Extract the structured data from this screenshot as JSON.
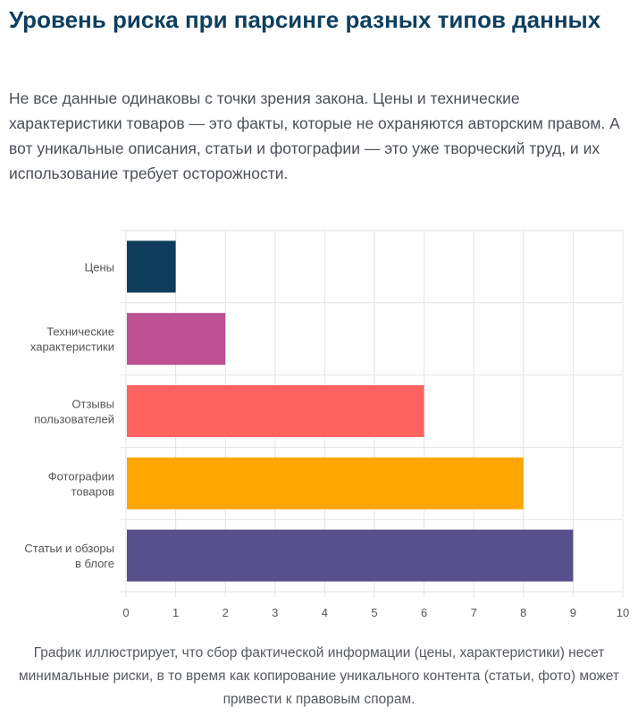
{
  "title": "Уровень риска при парсинге разных типов данных",
  "intro": "Не все данные одинаковы с точки зрения закона. Цены и технические характеристики товаров — это факты, которые не охраняются авторским правом. А вот уникальные описания, статьи и фотографии — это уже творческий труд, и их использование требует осторожности.",
  "caption": "График иллюстрирует, что сбор фактической информации (цены, характеристики) несет минимальные риски, в то время как копирование уникального контента (статьи, фото) может привести к правовым спорам.",
  "chart_data": {
    "type": "bar",
    "orientation": "horizontal",
    "categories": [
      [
        "Цены"
      ],
      [
        "Технические",
        "характеристики"
      ],
      [
        "Отзывы",
        "пользователей"
      ],
      [
        "Фотографии",
        "товаров"
      ],
      [
        "Статьи и обзоры",
        "в блоге"
      ]
    ],
    "values": [
      1,
      2,
      6,
      8,
      9
    ],
    "colors": [
      "#0f3d5c",
      "#bc5090",
      "#ff6361",
      "#ffa600",
      "#58508d"
    ],
    "xlim": [
      0,
      10
    ],
    "xticks": [
      "0",
      "1",
      "2",
      "3",
      "4",
      "5",
      "6",
      "7",
      "8",
      "9",
      "10"
    ],
    "grid": true,
    "legend": "none"
  }
}
